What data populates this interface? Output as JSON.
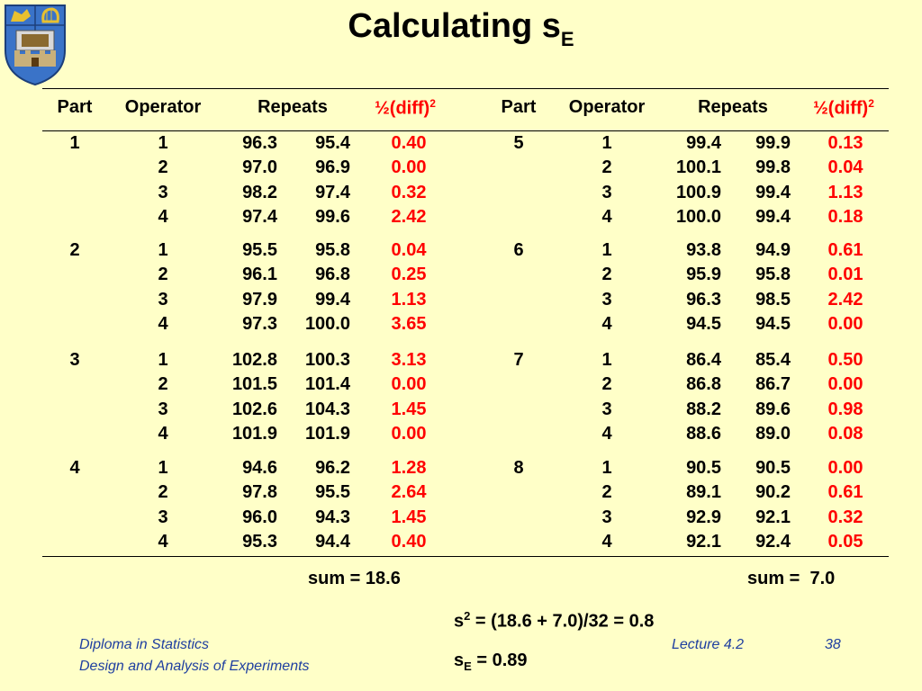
{
  "title": {
    "main": "Calculating s",
    "subscript": "E"
  },
  "header": {
    "part": "Part",
    "operator": "Operator",
    "repeats": "Repeats",
    "halfdiff": "½(diff)",
    "halfdiff_exp": "2"
  },
  "left": {
    "groups": [
      {
        "part": "1",
        "rows": [
          {
            "op": "1",
            "r1": "96.3",
            "r2": "95.4",
            "d": "0.40"
          },
          {
            "op": "2",
            "r1": "97.0",
            "r2": "96.9",
            "d": "0.00"
          },
          {
            "op": "3",
            "r1": "98.2",
            "r2": "97.4",
            "d": "0.32"
          },
          {
            "op": "4",
            "r1": "97.4",
            "r2": "99.6",
            "d": "2.42"
          }
        ]
      },
      {
        "part": "2",
        "rows": [
          {
            "op": "1",
            "r1": "95.5",
            "r2": "95.8",
            "d": "0.04"
          },
          {
            "op": "2",
            "r1": "96.1",
            "r2": "96.8",
            "d": "0.25"
          },
          {
            "op": "3",
            "r1": "97.9",
            "r2": "99.4",
            "d": "1.13"
          },
          {
            "op": "4",
            "r1": "97.3",
            "r2": "100.0",
            "d": "3.65"
          }
        ]
      },
      {
        "part": "3",
        "rows": [
          {
            "op": "1",
            "r1": "102.8",
            "r2": "100.3",
            "d": "3.13"
          },
          {
            "op": "2",
            "r1": "101.5",
            "r2": "101.4",
            "d": "0.00"
          },
          {
            "op": "3",
            "r1": "102.6",
            "r2": "104.3",
            "d": "1.45"
          },
          {
            "op": "4",
            "r1": "101.9",
            "r2": "101.9",
            "d": "0.00"
          }
        ]
      },
      {
        "part": "4",
        "rows": [
          {
            "op": "1",
            "r1": "94.6",
            "r2": "96.2",
            "d": "1.28"
          },
          {
            "op": "2",
            "r1": "97.8",
            "r2": "95.5",
            "d": "2.64"
          },
          {
            "op": "3",
            "r1": "96.0",
            "r2": "94.3",
            "d": "1.45"
          },
          {
            "op": "4",
            "r1": "95.3",
            "r2": "94.4",
            "d": "0.40"
          }
        ]
      }
    ],
    "sum": "sum = 18.6"
  },
  "right": {
    "groups": [
      {
        "part": "5",
        "rows": [
          {
            "op": "1",
            "r1": "99.4",
            "r2": "99.9",
            "d": "0.13"
          },
          {
            "op": "2",
            "r1": "100.1",
            "r2": "99.8",
            "d": "0.04"
          },
          {
            "op": "3",
            "r1": "100.9",
            "r2": "99.4",
            "d": "1.13"
          },
          {
            "op": "4",
            "r1": "100.0",
            "r2": "99.4",
            "d": "0.18"
          }
        ]
      },
      {
        "part": "6",
        "rows": [
          {
            "op": "1",
            "r1": "93.8",
            "r2": "94.9",
            "d": "0.61"
          },
          {
            "op": "2",
            "r1": "95.9",
            "r2": "95.8",
            "d": "0.01"
          },
          {
            "op": "3",
            "r1": "96.3",
            "r2": "98.5",
            "d": "2.42"
          },
          {
            "op": "4",
            "r1": "94.5",
            "r2": "94.5",
            "d": "0.00"
          }
        ]
      },
      {
        "part": "7",
        "rows": [
          {
            "op": "1",
            "r1": "86.4",
            "r2": "85.4",
            "d": "0.50"
          },
          {
            "op": "2",
            "r1": "86.8",
            "r2": "86.7",
            "d": "0.00"
          },
          {
            "op": "3",
            "r1": "88.2",
            "r2": "89.6",
            "d": "0.98"
          },
          {
            "op": "4",
            "r1": "88.6",
            "r2": "89.0",
            "d": "0.08"
          }
        ]
      },
      {
        "part": "8",
        "rows": [
          {
            "op": "1",
            "r1": "90.5",
            "r2": "90.5",
            "d": "0.00"
          },
          {
            "op": "2",
            "r1": "89.1",
            "r2": "90.2",
            "d": "0.61"
          },
          {
            "op": "3",
            "r1": "92.9",
            "r2": "92.1",
            "d": "0.32"
          },
          {
            "op": "4",
            "r1": "92.1",
            "r2": "92.4",
            "d": "0.05"
          }
        ]
      }
    ],
    "sum": "sum =  7.0"
  },
  "formulas": {
    "s2_base": "s",
    "s2_exp": "2",
    "s2_rest": " = (18.6 + 7.0)/32 = 0.8",
    "se_base": "s",
    "se_sub": "E",
    "se_rest": " = 0.89"
  },
  "footer": {
    "line1": "Diploma in Statistics",
    "line2": "Design and Analysis of Experiments",
    "lecture": "Lecture 4.2",
    "page": "38"
  },
  "colors": {
    "background": "#ffffc8",
    "highlight": "#ff0000",
    "footer": "#1f3fa0"
  }
}
